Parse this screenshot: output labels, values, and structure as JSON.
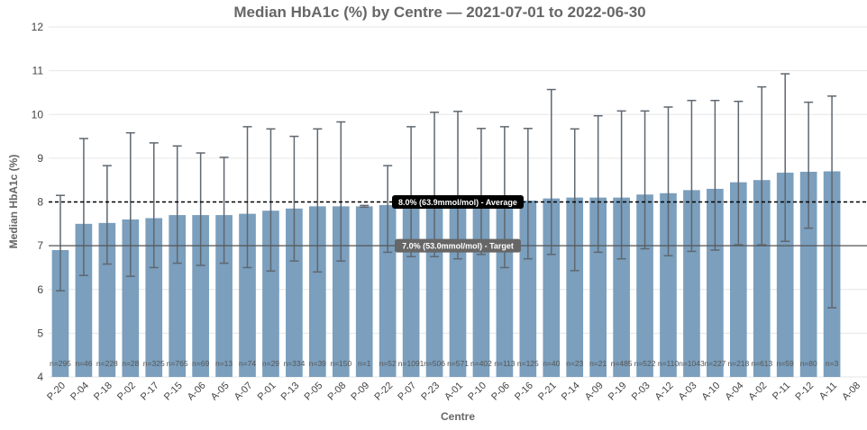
{
  "chart_data": {
    "type": "bar",
    "title": "Median HbA1c (%) by Centre — 2021-07-01 to 2022-06-30",
    "xlabel": "Centre",
    "ylabel": "Median HbA1c (%)",
    "ylim": [
      4,
      12
    ],
    "yticks": [
      "4",
      "5",
      "6",
      "7",
      "8",
      "9",
      "10",
      "11",
      "12"
    ],
    "grid": true,
    "bar_color": "#7b9fbd",
    "error_color": "#5f6770",
    "categories": [
      "P-20",
      "P-04",
      "P-18",
      "P-02",
      "P-17",
      "P-15",
      "A-06",
      "A-05",
      "A-07",
      "P-01",
      "P-13",
      "P-05",
      "P-08",
      "P-09",
      "P-22",
      "P-07",
      "P-23",
      "A-01",
      "P-10",
      "P-06",
      "P-16",
      "P-21",
      "P-14",
      "A-09",
      "P-19",
      "P-03",
      "A-12",
      "A-03",
      "A-10",
      "A-04",
      "A-02",
      "P-11",
      "P-12",
      "A-11",
      "A-08"
    ],
    "values": [
      6.9,
      7.5,
      7.52,
      7.6,
      7.63,
      7.7,
      7.7,
      7.7,
      7.73,
      7.8,
      7.85,
      7.9,
      7.9,
      7.9,
      7.93,
      7.95,
      7.97,
      7.98,
      8.0,
      8.0,
      8.03,
      8.08,
      8.1,
      8.1,
      8.1,
      8.17,
      8.2,
      8.27,
      8.3,
      8.45,
      8.5,
      8.67,
      8.69,
      8.7,
      null
    ],
    "error_low": [
      5.97,
      6.32,
      6.58,
      6.3,
      6.5,
      6.6,
      6.55,
      6.6,
      6.5,
      6.42,
      6.65,
      6.4,
      6.65,
      7.88,
      6.85,
      6.75,
      6.75,
      6.7,
      6.8,
      6.5,
      6.7,
      6.8,
      6.43,
      6.85,
      6.7,
      6.93,
      6.77,
      6.87,
      6.9,
      7.02,
      7.02,
      7.1,
      7.4,
      5.58,
      null
    ],
    "error_high": [
      8.15,
      9.45,
      8.83,
      9.58,
      9.35,
      9.28,
      9.12,
      9.02,
      9.72,
      9.67,
      9.5,
      9.67,
      9.83,
      7.92,
      8.83,
      9.72,
      10.05,
      10.07,
      9.68,
      9.72,
      9.68,
      10.57,
      9.67,
      9.97,
      10.08,
      10.08,
      10.17,
      10.32,
      10.32,
      10.3,
      10.63,
      10.93,
      10.28,
      10.42,
      null
    ],
    "counts": [
      "n=295",
      "n=46",
      "n=228",
      "n=28",
      "n=325",
      "n=765",
      "n=69",
      "n=13",
      "n=74",
      "n=29",
      "n=334",
      "n=39",
      "n=150",
      "n=1",
      "n=52",
      "n=1091",
      "n=506",
      "n=571",
      "n=402",
      "n=113",
      "n=125",
      "n=40",
      "n=23",
      "n=21",
      "n=485",
      "n=522",
      "n=110",
      "n=1043",
      "n=227",
      "n=218",
      "n=613",
      "n=59",
      "n=80",
      "n=3",
      ""
    ],
    "reference_lines": [
      {
        "value": 8.0,
        "label": "8.0% (63.9mmol/mol) - Average",
        "style": "dashed",
        "color": "#000000",
        "label_bg": "#000000"
      },
      {
        "value": 7.0,
        "label": "7.0% (53.0mmol/mol) - Target",
        "style": "solid",
        "color": "#555555",
        "label_bg": "#666666"
      }
    ]
  }
}
